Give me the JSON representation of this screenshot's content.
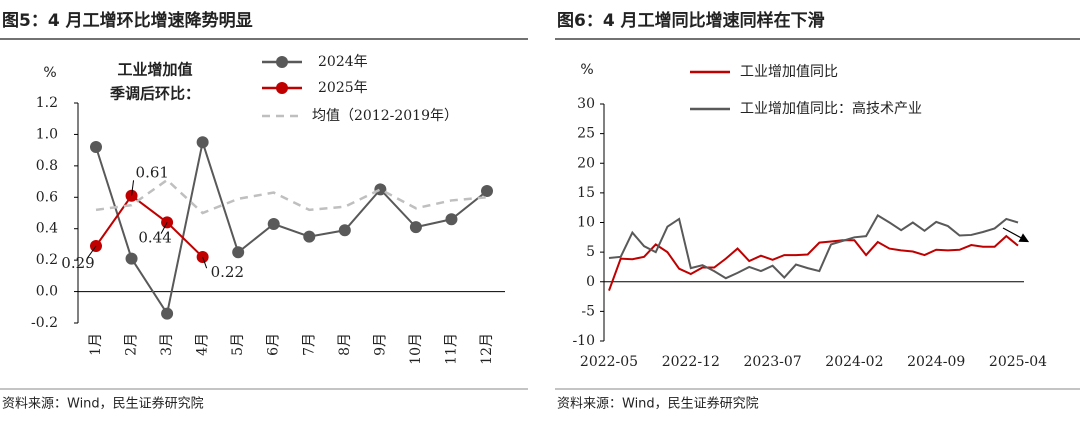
{
  "chart_data": [
    {
      "type": "line",
      "title": "图5：4 月工增环比增速降势明显",
      "y_unit": "%",
      "annotation": [
        "工业增加值",
        "季调后环比："
      ],
      "categories": [
        "1月",
        "2月",
        "3月",
        "4月",
        "5月",
        "6月",
        "7月",
        "8月",
        "9月",
        "10月",
        "11月",
        "12月"
      ],
      "series": [
        {
          "name": "2024年",
          "color": "#595959",
          "marker": true,
          "values": [
            0.92,
            0.21,
            -0.14,
            0.95,
            0.25,
            0.43,
            0.35,
            0.39,
            0.65,
            0.41,
            0.46,
            0.64
          ]
        },
        {
          "name": "2025年",
          "color": "#c00000",
          "marker": true,
          "data_labels": true,
          "values": [
            0.29,
            0.61,
            0.44,
            0.22,
            null,
            null,
            null,
            null,
            null,
            null,
            null,
            null
          ]
        },
        {
          "name": "均值（2012-2019年）",
          "color": "#bfbfbf",
          "dashed": true,
          "values": [
            0.52,
            0.55,
            0.71,
            0.5,
            0.59,
            0.63,
            0.52,
            0.54,
            0.65,
            0.53,
            0.58,
            0.6
          ]
        }
      ],
      "ylim": [
        -0.2,
        1.2
      ],
      "yticks": [
        -0.2,
        {
          "value": 0,
          "label": "0.0"
        },
        0.2,
        0.4,
        0.6,
        0.8,
        {
          "value": 1,
          "label": "1.0"
        },
        1.2
      ],
      "source": "资料来源：Wind，民生证券研究院"
    },
    {
      "type": "line",
      "title": "图6：4 月工增同比增速同样在下滑",
      "y_unit": "%",
      "categories": [
        "2022-05",
        null,
        null,
        null,
        null,
        null,
        null,
        "2022-12",
        null,
        null,
        null,
        null,
        null,
        null,
        "2023-07",
        null,
        null,
        null,
        null,
        null,
        null,
        "2024-02",
        null,
        null,
        null,
        null,
        null,
        null,
        "2024-09",
        null,
        null,
        null,
        null,
        null,
        null,
        "2025-04"
      ],
      "series": [
        {
          "name": "工业增加值同比",
          "color": "#c00000",
          "values": [
            -1.5,
            3.9,
            3.8,
            4.2,
            6.3,
            5.0,
            2.2,
            1.3,
            2.4,
            2.4,
            3.9,
            5.6,
            3.5,
            4.4,
            3.7,
            4.5,
            4.5,
            4.6,
            6.6,
            6.8,
            7.0,
            7.0,
            4.5,
            6.7,
            5.6,
            5.3,
            5.1,
            4.5,
            5.4,
            5.3,
            5.4,
            6.2,
            5.9,
            5.9,
            7.7,
            6.1
          ]
        },
        {
          "name": "工业增加值同比：高技术产业",
          "color": "#595959",
          "values": [
            4.0,
            4.2,
            8.3,
            6.0,
            5.0,
            9.3,
            10.6,
            2.3,
            2.8,
            1.8,
            0.6,
            1.5,
            2.5,
            1.8,
            2.7,
            0.7,
            2.9,
            2.3,
            1.8,
            6.3,
            6.9,
            7.5,
            7.7,
            11.2,
            10.0,
            8.7,
            10.0,
            8.6,
            10.1,
            9.4,
            7.8,
            7.9,
            8.4,
            9.0,
            10.6,
            10.0
          ]
        }
      ],
      "ylim": [
        -10,
        30
      ],
      "yticks": [
        -10,
        -5,
        0,
        5,
        10,
        15,
        20,
        25,
        30
      ],
      "source": "资料来源：Wind，民生证券研究院"
    }
  ]
}
